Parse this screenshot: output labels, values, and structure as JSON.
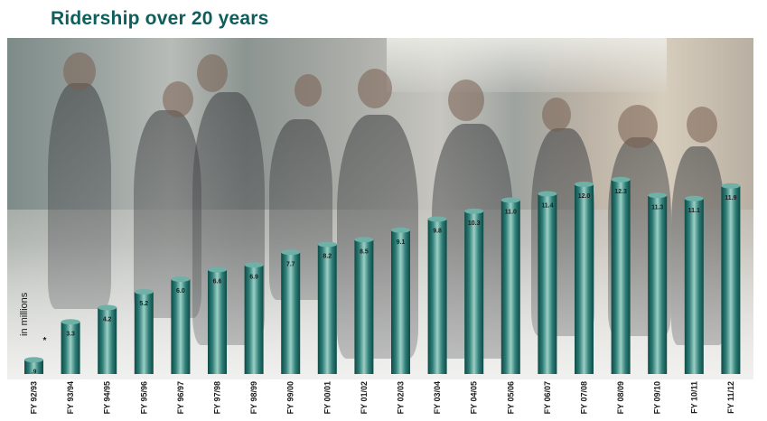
{
  "chart_data": {
    "type": "bar",
    "title": "Ridership over 20 years",
    "ylabel": "in millions",
    "categories": [
      "FY 92/93",
      "FY 93/94",
      "FY 94/95",
      "FY 95/96",
      "FY 96/97",
      "FY 97/98",
      "FY 98/99",
      "FY 99/00",
      "FY 00/01",
      "FY 01/02",
      "FY 02/03",
      "FY 03/04",
      "FY 04/05",
      "FY 05/06",
      "FY 06/07",
      "FY 07/08",
      "FY 08/09",
      "FY 09/10",
      "FY 10/11",
      "FY 11/12"
    ],
    "values": [
      0.9,
      3.3,
      4.2,
      5.2,
      6.0,
      6.6,
      6.9,
      7.7,
      8.2,
      8.5,
      9.1,
      9.8,
      10.3,
      11.0,
      11.4,
      12.0,
      12.3,
      11.3,
      11.1,
      11.9
    ],
    "value_labels": [
      ".9",
      "3.3",
      "4.2",
      "5.2",
      "6.0",
      "6.6",
      "6.9",
      "7.7",
      "8.2",
      "8.5",
      "9.1",
      "9.8",
      "10.3",
      "11.0",
      "11.4",
      "12.0",
      "12.3",
      "11.3",
      "11.1",
      "11.9"
    ],
    "footnote_mark": "*",
    "ylim": [
      0,
      13.6
    ],
    "grid": false,
    "colors": {
      "bar_dark": "#0d4a46",
      "bar_mid": "#2f7f78",
      "bar_light": "#9ccfc6",
      "title": "#0e5e5c"
    }
  }
}
